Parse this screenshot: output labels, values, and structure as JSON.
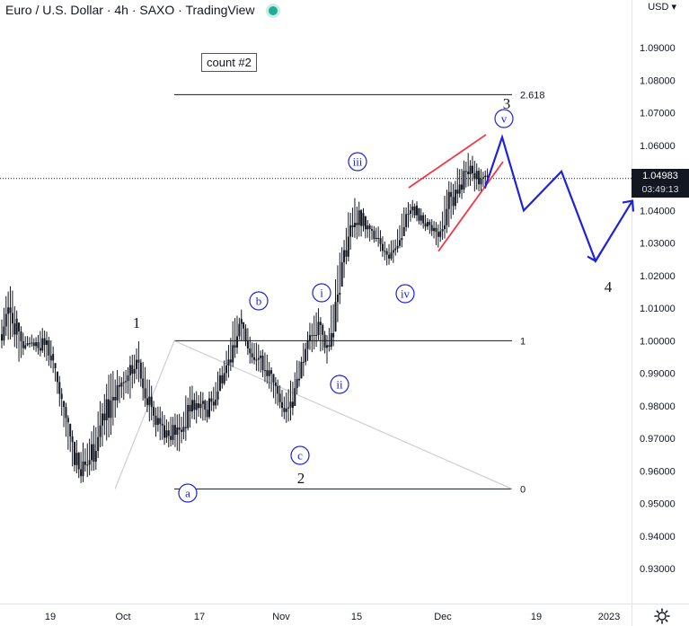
{
  "header": {
    "title": "Euro / U.S. Dollar · 4h · SAXO · TradingView"
  },
  "currency_label": "USD ▾",
  "count_label": "count #2",
  "last_price": "1.04983",
  "countdown": "03:49:13",
  "colors": {
    "up": "#26a69a",
    "down": "#ef5350",
    "projection": "#1e22d8",
    "wedge": "#f23645",
    "wave_circle": "#1e22d8"
  },
  "icons": [
    "settings-gear-icon",
    "live-status-dot-icon"
  ],
  "chart_data": {
    "type": "line",
    "symbol": "EURUSD",
    "timeframe": "4h",
    "y_axis": {
      "range": [
        0.9193,
        1.103
      ],
      "ticks": [
        "1.09000",
        "1.08000",
        "1.07000",
        "1.06000",
        "1.05000",
        "1.04000",
        "1.03000",
        "1.02000",
        "1.01000",
        "1.00000",
        "0.99000",
        "0.98000",
        "0.97000",
        "0.96000",
        "0.95000",
        "0.94000",
        "0.93000"
      ]
    },
    "x_axis": {
      "ticks": [
        "19",
        "Oct",
        "17",
        "Nov",
        "15",
        "Dec",
        "19",
        "2023"
      ]
    },
    "price_path": [
      [
        1.008,
        0.996
      ],
      [
        1.02,
        1.0
      ],
      [
        1.006,
        0.992
      ],
      [
        1.002,
        0.998
      ],
      [
        1.002,
        0.996
      ],
      [
        1.006,
        0.994
      ],
      [
        0.999,
        0.988
      ],
      [
        0.986,
        0.976
      ],
      [
        0.976,
        0.963
      ],
      [
        0.968,
        0.955
      ],
      [
        0.97,
        0.958
      ],
      [
        0.976,
        0.96
      ],
      [
        0.987,
        0.968
      ],
      [
        0.993,
        0.972
      ],
      [
        0.99,
        0.98
      ],
      [
        0.997,
        0.982
      ],
      [
        1.0,
        0.986
      ],
      [
        0.992,
        0.976
      ],
      [
        0.982,
        0.97
      ],
      [
        0.978,
        0.968
      ],
      [
        0.977,
        0.966
      ],
      [
        0.98,
        0.965
      ],
      [
        0.987,
        0.972
      ],
      [
        0.986,
        0.975
      ],
      [
        0.983,
        0.974
      ],
      [
        0.99,
        0.978
      ],
      [
        0.995,
        0.986
      ],
      [
        1.006,
        0.99
      ],
      [
        1.01,
        1.0
      ],
      [
        1.003,
        0.992
      ],
      [
        0.999,
        0.99
      ],
      [
        0.996,
        0.986
      ],
      [
        0.99,
        0.98
      ],
      [
        0.985,
        0.974
      ],
      [
        0.99,
        0.976
      ],
      [
        0.998,
        0.986
      ],
      [
        1.006,
        0.995
      ],
      [
        1.01,
        0.997
      ],
      [
        1.002,
        0.993
      ],
      [
        1.02,
        1.0
      ],
      [
        1.035,
        1.018
      ],
      [
        1.045,
        1.028
      ],
      [
        1.043,
        1.032
      ],
      [
        1.037,
        1.03
      ],
      [
        1.036,
        1.028
      ],
      [
        1.029,
        1.023
      ],
      [
        1.033,
        1.024
      ],
      [
        1.043,
        1.03
      ],
      [
        1.044,
        1.036
      ],
      [
        1.042,
        1.035
      ],
      [
        1.038,
        1.032
      ],
      [
        1.036,
        1.028
      ],
      [
        1.048,
        1.032
      ],
      [
        1.052,
        1.04
      ],
      [
        1.057,
        1.044
      ],
      [
        1.059,
        1.046
      ],
      [
        1.053,
        1.045
      ],
      [
        1.054,
        1.048
      ]
    ],
    "fib_levels": [
      {
        "label": "2.618",
        "value": 1.0756
      },
      {
        "label": "1",
        "value": 1.0
      },
      {
        "label": "0",
        "value": 0.9545
      }
    ],
    "current_price": 1.04983,
    "projection_path": [
      1.047,
      1.0625,
      1.04,
      1.052,
      1.0245,
      1.043
    ],
    "wedge_lines": [
      [
        1.047,
        1.0633
      ],
      [
        1.0275,
        1.055
      ]
    ],
    "wave_labels": {
      "plain": [
        "1",
        "2",
        "3",
        "4"
      ],
      "circled": [
        "a",
        "b",
        "c",
        "i",
        "ii",
        "iii",
        "iv",
        "v"
      ]
    }
  }
}
